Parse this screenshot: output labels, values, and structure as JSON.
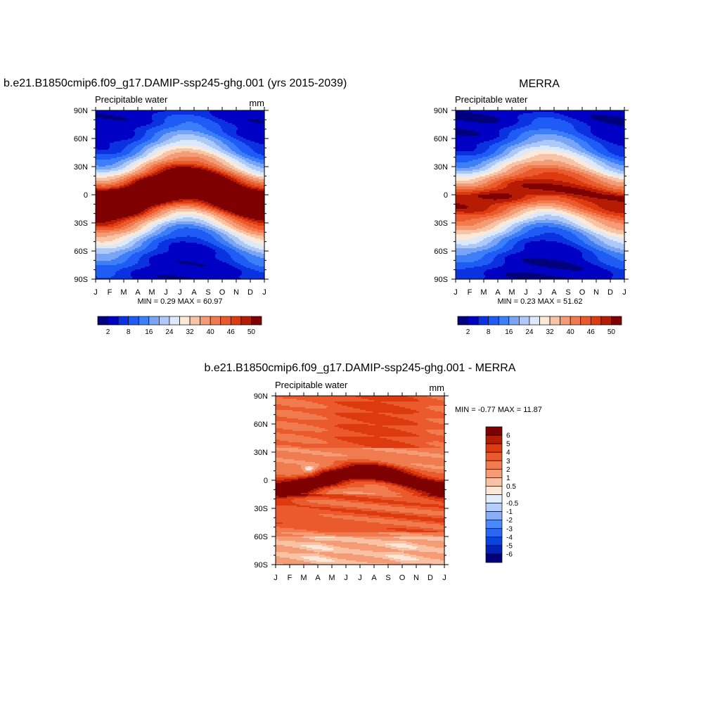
{
  "colors": {
    "seq": [
      "#00007f",
      "#0000c4",
      "#0a32e0",
      "#1e5cf5",
      "#3c7ff8",
      "#7aa5f7",
      "#adc9fa",
      "#dbe9fb",
      "#fde9d9",
      "#f9c3a6",
      "#f59b75",
      "#f07b4f",
      "#ea5a2c",
      "#dd3a10",
      "#b61b04",
      "#7f0000"
    ],
    "diff": [
      "#00007f",
      "#0022b8",
      "#0a44e0",
      "#2866f5",
      "#4a8af8",
      "#89aef6",
      "#b5cdfa",
      "#e2eefc",
      "#fde8d8",
      "#f9c2a4",
      "#f59b75",
      "#f07b4f",
      "#ea5a2c",
      "#dd3a10",
      "#b61b04",
      "#7f0000"
    ]
  },
  "chart_data": [
    {
      "type": "heatmap",
      "id": "model",
      "title": "b.e21.B1850cmip6.f09_g17.DAMIP-ssp245-ghg.001 (yrs 2015-2039)",
      "variable": "Precipitable water",
      "units": "mm",
      "x_labels": [
        "J",
        "F",
        "M",
        "A",
        "M",
        "J",
        "J",
        "A",
        "S",
        "O",
        "N",
        "D",
        "J"
      ],
      "y_labels": [
        "90N",
        "60N",
        "30N",
        "0",
        "30S",
        "60S",
        "90S"
      ],
      "ylim": [
        -90,
        90
      ],
      "min": 0.29,
      "max": 60.97,
      "stats_text": "MIN =   0.29 MAX =  60.97",
      "levels": [
        2,
        5,
        8,
        12,
        16,
        20,
        24,
        28,
        32,
        36,
        40,
        43,
        46,
        48,
        50
      ],
      "colorbar_labels": [
        "2",
        "8",
        "16",
        "24",
        "32",
        "40",
        "46",
        "50"
      ],
      "equator_peak": 58,
      "itcz_amp": 9,
      "lat_width": 30,
      "polar": 2.5
    },
    {
      "type": "heatmap",
      "id": "obs",
      "title": "MERRA",
      "variable": "Precipitable water",
      "units": "",
      "x_labels": [
        "J",
        "F",
        "M",
        "A",
        "M",
        "J",
        "J",
        "A",
        "S",
        "O",
        "N",
        "D",
        "J"
      ],
      "y_labels": [
        "90N",
        "60N",
        "30N",
        "0",
        "30S",
        "60S",
        "90S"
      ],
      "ylim": [
        -90,
        90
      ],
      "min": 0.23,
      "max": 51.62,
      "stats_text": "MIN =   0.23 MAX =  51.62",
      "levels": [
        2,
        5,
        8,
        12,
        16,
        20,
        24,
        28,
        32,
        36,
        40,
        43,
        46,
        48,
        50
      ],
      "colorbar_labels": [
        "2",
        "8",
        "16",
        "24",
        "32",
        "40",
        "46",
        "50"
      ],
      "equator_peak": 50,
      "itcz_amp": 8,
      "lat_width": 30,
      "polar": 1.8
    },
    {
      "type": "heatmap",
      "id": "diff",
      "title": "b.e21.B1850cmip6.f09_g17.DAMIP-ssp245-ghg.001 - MERRA",
      "variable": "Precipitable water",
      "units": "mm",
      "x_labels": [
        "J",
        "F",
        "M",
        "A",
        "M",
        "J",
        "J",
        "A",
        "S",
        "O",
        "N",
        "D",
        "J"
      ],
      "y_labels": [
        "90N",
        "60N",
        "30N",
        "0",
        "30S",
        "60S",
        "90S"
      ],
      "ylim": [
        -90,
        90
      ],
      "min": -0.77,
      "max": 11.87,
      "stats_text": "MIN =  -0.77 MAX =  11.87",
      "levels": [
        -6,
        -5,
        -4,
        -3,
        -2,
        -1,
        -0.5,
        0,
        0.5,
        1,
        2,
        3,
        4,
        5,
        6
      ],
      "colorbar_labels": [
        "6",
        "5",
        "4",
        "3",
        "2",
        "1",
        "0.5",
        "0",
        "-0.5",
        "-1",
        "-2",
        "-3",
        "-4",
        "-5",
        "-6"
      ]
    }
  ]
}
